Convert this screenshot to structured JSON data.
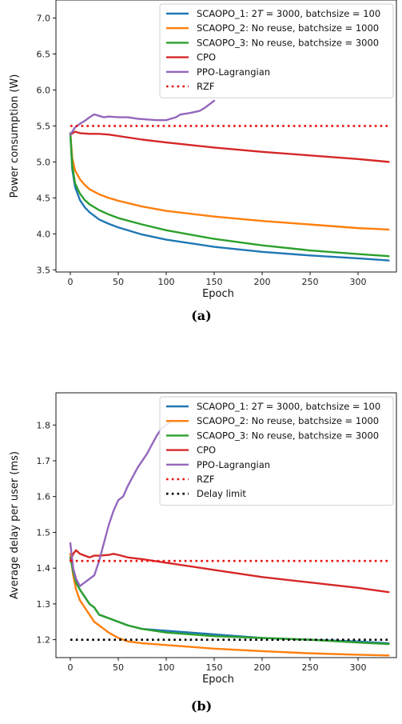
{
  "chart_data": [
    {
      "type": "line",
      "caption": "(a)",
      "xlabel": "Epoch",
      "ylabel": "Power consumption (W)",
      "xlim": [
        -15,
        340
      ],
      "ylim": [
        3.47,
        7.25
      ],
      "xticks": [
        0,
        50,
        100,
        150,
        200,
        250,
        300
      ],
      "yticks": [
        3.5,
        4.0,
        4.5,
        5.0,
        5.5,
        6.0,
        6.5,
        7.0
      ],
      "ytick_labels": [
        "3.5",
        "4.0",
        "4.5",
        "5.0",
        "5.5",
        "6.0",
        "6.5",
        "7.0"
      ],
      "legend_position": "top-right",
      "series": [
        {
          "name": "SCAOPO_1: 2T = 3000, batchsize = 100",
          "color": "#1f77b4",
          "style": "solid",
          "x": [
            0,
            2,
            5,
            10,
            15,
            20,
            30,
            40,
            50,
            75,
            100,
            150,
            200,
            250,
            300,
            332
          ],
          "y": [
            5.4,
            4.9,
            4.65,
            4.47,
            4.37,
            4.3,
            4.2,
            4.14,
            4.09,
            3.99,
            3.92,
            3.82,
            3.75,
            3.7,
            3.66,
            3.63
          ]
        },
        {
          "name": "SCAOPO_2: No reuse, batchsize = 1000",
          "color": "#ff7f0e",
          "style": "solid",
          "x": [
            0,
            2,
            5,
            10,
            15,
            20,
            30,
            40,
            50,
            75,
            100,
            150,
            200,
            250,
            300,
            332
          ],
          "y": [
            5.4,
            5.05,
            4.88,
            4.76,
            4.68,
            4.62,
            4.55,
            4.5,
            4.46,
            4.38,
            4.32,
            4.24,
            4.18,
            4.13,
            4.08,
            4.06
          ]
        },
        {
          "name": "SCAOPO_3: No reuse, batchsize = 3000",
          "color": "#2ca02c",
          "style": "solid",
          "x": [
            0,
            2,
            5,
            10,
            15,
            20,
            30,
            40,
            50,
            75,
            100,
            150,
            200,
            250,
            300,
            332
          ],
          "y": [
            5.4,
            4.95,
            4.7,
            4.56,
            4.47,
            4.41,
            4.33,
            4.27,
            4.22,
            4.13,
            4.05,
            3.93,
            3.84,
            3.77,
            3.72,
            3.69
          ]
        },
        {
          "name": "CPO",
          "color": "#d62728",
          "style": "solid",
          "x": [
            0,
            5,
            10,
            20,
            30,
            40,
            50,
            75,
            100,
            150,
            200,
            250,
            300,
            332
          ],
          "y": [
            5.38,
            5.42,
            5.4,
            5.39,
            5.39,
            5.38,
            5.36,
            5.31,
            5.27,
            5.2,
            5.14,
            5.09,
            5.04,
            5.0
          ]
        },
        {
          "name": "PPO-Lagrangian",
          "color": "#9467bd",
          "style": "solid",
          "x": [
            0,
            5,
            10,
            15,
            20,
            25,
            30,
            35,
            40,
            50,
            60,
            70,
            80,
            90,
            100,
            105,
            110,
            115,
            125,
            135,
            140,
            145,
            150
          ],
          "y": [
            5.38,
            5.48,
            5.53,
            5.57,
            5.62,
            5.66,
            5.64,
            5.62,
            5.63,
            5.62,
            5.62,
            5.6,
            5.59,
            5.58,
            5.58,
            5.6,
            5.62,
            5.66,
            5.68,
            5.71,
            5.75,
            5.8,
            5.85
          ]
        },
        {
          "name": "RZF",
          "color": "#e8110f",
          "style": "dotted",
          "x": [
            0,
            332
          ],
          "y": [
            5.5,
            5.5
          ]
        }
      ]
    },
    {
      "type": "line",
      "caption": "(b)",
      "xlabel": "Epoch",
      "ylabel": "Average delay per user (ms)",
      "xlim": [
        -15,
        340
      ],
      "ylim": [
        1.15,
        1.89
      ],
      "xticks": [
        0,
        50,
        100,
        150,
        200,
        250,
        300
      ],
      "yticks": [
        1.2,
        1.3,
        1.4,
        1.5,
        1.6,
        1.7,
        1.8
      ],
      "ytick_labels": [
        "1.2",
        "1.3",
        "1.4",
        "1.5",
        "1.6",
        "1.7",
        "1.8"
      ],
      "legend_position": "top-right",
      "series": [
        {
          "name": "SCAOPO_1: 2T = 3000, batchsize = 100",
          "color": "#1f77b4",
          "style": "solid",
          "x": [
            0,
            3,
            6,
            10,
            15,
            20,
            25,
            30,
            40,
            50,
            60,
            75,
            100,
            150,
            200,
            250,
            300,
            332
          ],
          "y": [
            1.44,
            1.39,
            1.36,
            1.34,
            1.32,
            1.3,
            1.29,
            1.27,
            1.26,
            1.25,
            1.24,
            1.23,
            1.225,
            1.215,
            1.205,
            1.2,
            1.195,
            1.19
          ]
        },
        {
          "name": "SCAOPO_2: No reuse, batchsize = 1000",
          "color": "#ff7f0e",
          "style": "solid",
          "x": [
            0,
            3,
            6,
            10,
            15,
            20,
            25,
            30,
            35,
            40,
            50,
            60,
            75,
            100,
            150,
            200,
            250,
            300,
            332
          ],
          "y": [
            1.44,
            1.38,
            1.34,
            1.31,
            1.29,
            1.27,
            1.25,
            1.24,
            1.23,
            1.22,
            1.205,
            1.195,
            1.19,
            1.185,
            1.175,
            1.168,
            1.162,
            1.158,
            1.156
          ]
        },
        {
          "name": "SCAOPO_3: No reuse, batchsize = 3000",
          "color": "#2ca02c",
          "style": "solid",
          "x": [
            0,
            3,
            6,
            10,
            15,
            20,
            25,
            30,
            40,
            50,
            60,
            75,
            100,
            150,
            200,
            250,
            300,
            332
          ],
          "y": [
            1.43,
            1.39,
            1.36,
            1.34,
            1.32,
            1.3,
            1.29,
            1.27,
            1.26,
            1.25,
            1.24,
            1.23,
            1.22,
            1.21,
            1.205,
            1.2,
            1.192,
            1.188
          ]
        },
        {
          "name": "CPO",
          "color": "#d62728",
          "style": "solid",
          "x": [
            0,
            3,
            6,
            10,
            15,
            20,
            25,
            30,
            40,
            45,
            50,
            60,
            75,
            100,
            150,
            200,
            250,
            300,
            332
          ],
          "y": [
            1.42,
            1.44,
            1.45,
            1.44,
            1.435,
            1.43,
            1.435,
            1.435,
            1.437,
            1.44,
            1.437,
            1.43,
            1.425,
            1.415,
            1.395,
            1.375,
            1.36,
            1.345,
            1.333
          ]
        },
        {
          "name": "PPO-Lagrangian",
          "color": "#9467bd",
          "style": "solid",
          "x": [
            0,
            3,
            6,
            10,
            15,
            20,
            25,
            30,
            35,
            40,
            45,
            50,
            55,
            60,
            70,
            80,
            90,
            95,
            100,
            105
          ],
          "y": [
            1.47,
            1.4,
            1.37,
            1.35,
            1.36,
            1.37,
            1.38,
            1.42,
            1.47,
            1.52,
            1.56,
            1.59,
            1.6,
            1.63,
            1.68,
            1.72,
            1.77,
            1.79,
            1.8,
            1.81
          ]
        },
        {
          "name": "RZF",
          "color": "#e8110f",
          "style": "dotted",
          "x": [
            0,
            332
          ],
          "y": [
            1.42,
            1.42
          ]
        },
        {
          "name": "Delay limit",
          "color": "#000000",
          "style": "dotted",
          "x": [
            0,
            332
          ],
          "y": [
            1.2,
            1.2
          ]
        }
      ]
    }
  ]
}
